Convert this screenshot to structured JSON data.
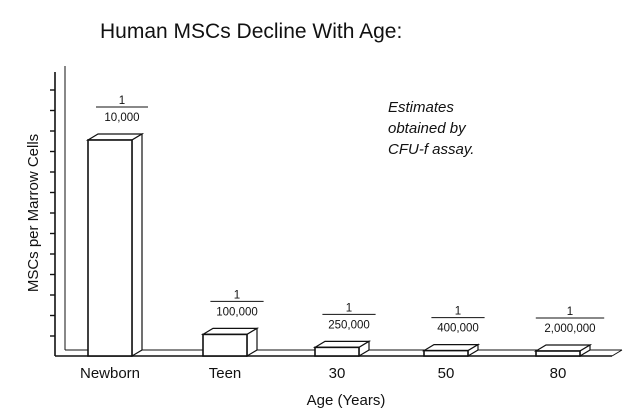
{
  "chart_data": {
    "type": "bar",
    "title": "Human MSCs Decline With Age:",
    "xlabel": "Age (Years)",
    "ylabel": "MSCs per Marrow Cells",
    "categories": [
      "Newborn",
      "Teen",
      "30",
      "50",
      "80"
    ],
    "values": [
      0.0001,
      1e-05,
      4e-06,
      2.5e-06,
      5e-07
    ],
    "data_labels": [
      {
        "numerator": "1",
        "denominator": "10,000"
      },
      {
        "numerator": "1",
        "denominator": "100,000"
      },
      {
        "numerator": "1",
        "denominator": "250,000"
      },
      {
        "numerator": "1",
        "denominator": "400,000"
      },
      {
        "numerator": "1",
        "denominator": "2,000,000"
      }
    ],
    "annotation": [
      "Estimates",
      "obtained by",
      "CFU-f assay."
    ],
    "ylim": [
      0,
      0.00015
    ],
    "grid": false,
    "style": "3d-outline"
  }
}
